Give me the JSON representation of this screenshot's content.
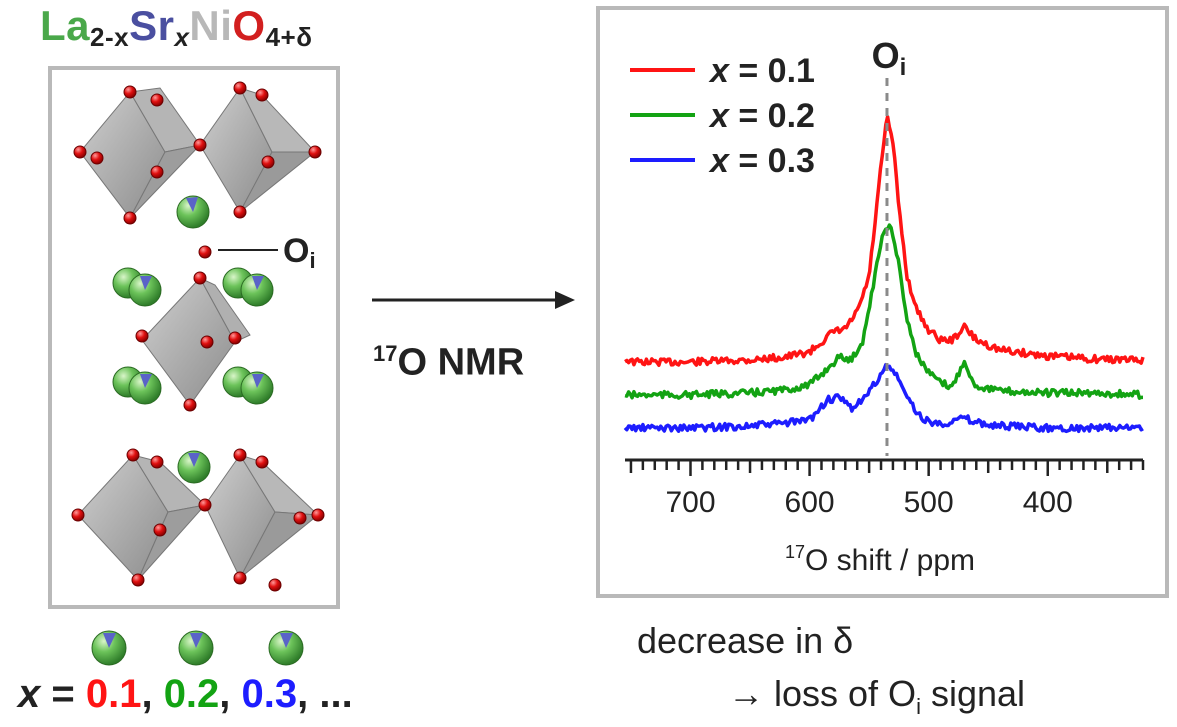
{
  "formula": {
    "la": "La",
    "la_sub": "2-x",
    "sr": "Sr",
    "sr_sub": "x",
    "ni": "Ni",
    "o": "O",
    "o_sub": "4+δ"
  },
  "structure": {
    "oi_label": "O",
    "oi_sub": "i"
  },
  "x_values": {
    "x": "x",
    "eq": " = ",
    "v1": "0.1",
    "v2": "0.2",
    "v3": "0.3",
    "sep": ", ",
    "tail": ", ..."
  },
  "arrow_label": {
    "sup": "17",
    "text": "O NMR"
  },
  "caption": {
    "line1": "decrease in δ",
    "line2_arrow": "→ loss of O",
    "line2_sub": "i",
    "line2_tail": " signal"
  },
  "colors": {
    "red": "#ff1414",
    "green": "#13a313",
    "blue": "#1d1dff",
    "la_green": "#4aa84a",
    "sr_blue": "#4a4fa0",
    "ni_gray": "#b8b8b8",
    "o_red": "#d21f1f",
    "frame": "#b9b9b9"
  },
  "chart_data": {
    "type": "line",
    "xlabel_sup": "17",
    "xlabel": "O shift / ppm",
    "xlim": [
      755,
      320
    ],
    "x_reversed": true,
    "xticks": [
      700,
      600,
      500,
      400
    ],
    "peak_label": "O",
    "peak_label_sub": "i",
    "peak_position_ppm": 535,
    "legend_position": "top-left",
    "series": [
      {
        "name": "x = 0.1",
        "x_label": "x",
        "value_label": " = 0.1",
        "color": "#ff1414",
        "points": [
          [
            750,
            0.0
          ],
          [
            700,
            0.0
          ],
          [
            650,
            0.02
          ],
          [
            620,
            0.05
          ],
          [
            600,
            0.1
          ],
          [
            580,
            0.3
          ],
          [
            570,
            0.33
          ],
          [
            560,
            0.5
          ],
          [
            550,
            0.85
          ],
          [
            540,
            1.95
          ],
          [
            535,
            2.45
          ],
          [
            530,
            2.2
          ],
          [
            525,
            1.55
          ],
          [
            518,
            0.85
          ],
          [
            510,
            0.52
          ],
          [
            500,
            0.32
          ],
          [
            490,
            0.22
          ],
          [
            480,
            0.22
          ],
          [
            470,
            0.35
          ],
          [
            460,
            0.22
          ],
          [
            440,
            0.12
          ],
          [
            400,
            0.06
          ],
          [
            360,
            0.03
          ],
          [
            320,
            0.02
          ]
        ]
      },
      {
        "name": "x = 0.2",
        "x_label": "x",
        "value_label": " = 0.2",
        "color": "#13a313",
        "points": [
          [
            750,
            0.0
          ],
          [
            700,
            0.0
          ],
          [
            650,
            0.02
          ],
          [
            620,
            0.05
          ],
          [
            600,
            0.1
          ],
          [
            580,
            0.32
          ],
          [
            575,
            0.38
          ],
          [
            565,
            0.35
          ],
          [
            555,
            0.55
          ],
          [
            545,
            1.2
          ],
          [
            538,
            1.65
          ],
          [
            532,
            1.7
          ],
          [
            525,
            1.3
          ],
          [
            518,
            0.75
          ],
          [
            510,
            0.4
          ],
          [
            500,
            0.22
          ],
          [
            490,
            0.12
          ],
          [
            480,
            0.08
          ],
          [
            470,
            0.35
          ],
          [
            462,
            0.1
          ],
          [
            440,
            0.04
          ],
          [
            400,
            0.02
          ],
          [
            360,
            0.02
          ],
          [
            320,
            0.0
          ]
        ]
      },
      {
        "name": "x = 0.3",
        "x_label": "x",
        "value_label": " = 0.3",
        "color": "#1d1dff",
        "points": [
          [
            750,
            0.0
          ],
          [
            700,
            0.0
          ],
          [
            650,
            0.02
          ],
          [
            620,
            0.05
          ],
          [
            600,
            0.08
          ],
          [
            585,
            0.28
          ],
          [
            575,
            0.3
          ],
          [
            565,
            0.2
          ],
          [
            555,
            0.28
          ],
          [
            545,
            0.45
          ],
          [
            535,
            0.62
          ],
          [
            528,
            0.55
          ],
          [
            520,
            0.35
          ],
          [
            510,
            0.15
          ],
          [
            500,
            0.06
          ],
          [
            490,
            0.04
          ],
          [
            470,
            0.1
          ],
          [
            460,
            0.05
          ],
          [
            440,
            0.02
          ],
          [
            400,
            0.0
          ],
          [
            360,
            0.0
          ],
          [
            320,
            0.0
          ]
        ]
      }
    ]
  }
}
